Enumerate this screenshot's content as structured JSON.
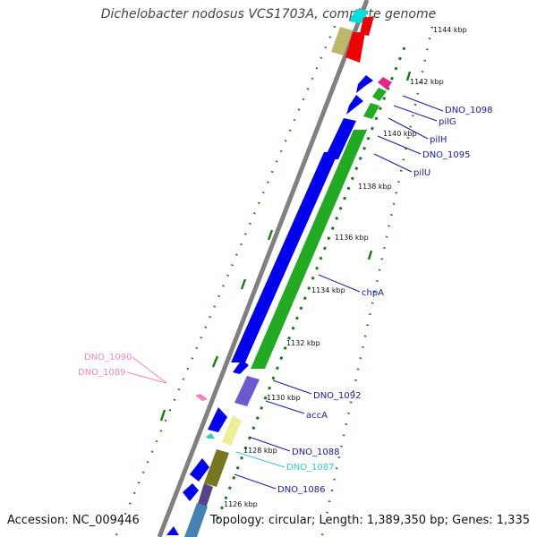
{
  "title": "Dichelobacter nodosus VCS1703A, complete genome",
  "footer": {
    "accession": "Accession: NC_009446",
    "summary": "Topology: circular; Length: 1,389,350 bp; Genes: 1,335"
  },
  "colors": {
    "forward_cds": "#0000ee",
    "reverse_cds": "#22aa22",
    "backbone": "#808080",
    "label_dark": "#1a1aaa",
    "label_cyan": "#33cccc",
    "label_pink": "#ee88bb",
    "gc_dots": "#1a7a1a"
  },
  "ruler": [
    {
      "label": "1126 kbp",
      "pos": 1126
    },
    {
      "label": "1128 kbp",
      "pos": 1128
    },
    {
      "label": "1130 kbp",
      "pos": 1130
    },
    {
      "label": "1132 kbp",
      "pos": 1132
    },
    {
      "label": "1134 kbp",
      "pos": 1134
    },
    {
      "label": "1136 kbp",
      "pos": 1136
    },
    {
      "label": "1138 kbp",
      "pos": 1138
    },
    {
      "label": "1140 kbp",
      "pos": 1140
    },
    {
      "label": "1142 kbp",
      "pos": 1142
    },
    {
      "label": "1144 kbp",
      "pos": 1144
    }
  ],
  "gene_labels": [
    {
      "text": "DNO_1098",
      "color": "dark"
    },
    {
      "text": "pilG",
      "color": "dark"
    },
    {
      "text": "pilH",
      "color": "dark"
    },
    {
      "text": "DNO_1095",
      "color": "dark"
    },
    {
      "text": "pilU",
      "color": "dark"
    },
    {
      "text": "chpA",
      "color": "dark"
    },
    {
      "text": "DNO_1092",
      "color": "dark"
    },
    {
      "text": "accA",
      "color": "dark"
    },
    {
      "text": "DNO_1088",
      "color": "dark"
    },
    {
      "text": "DNO_1087",
      "color": "cyan"
    },
    {
      "text": "DNO_1086",
      "color": "dark"
    },
    {
      "text": "DNO_1090",
      "color": "pink"
    },
    {
      "text": "DNO_1089",
      "color": "pink"
    }
  ]
}
